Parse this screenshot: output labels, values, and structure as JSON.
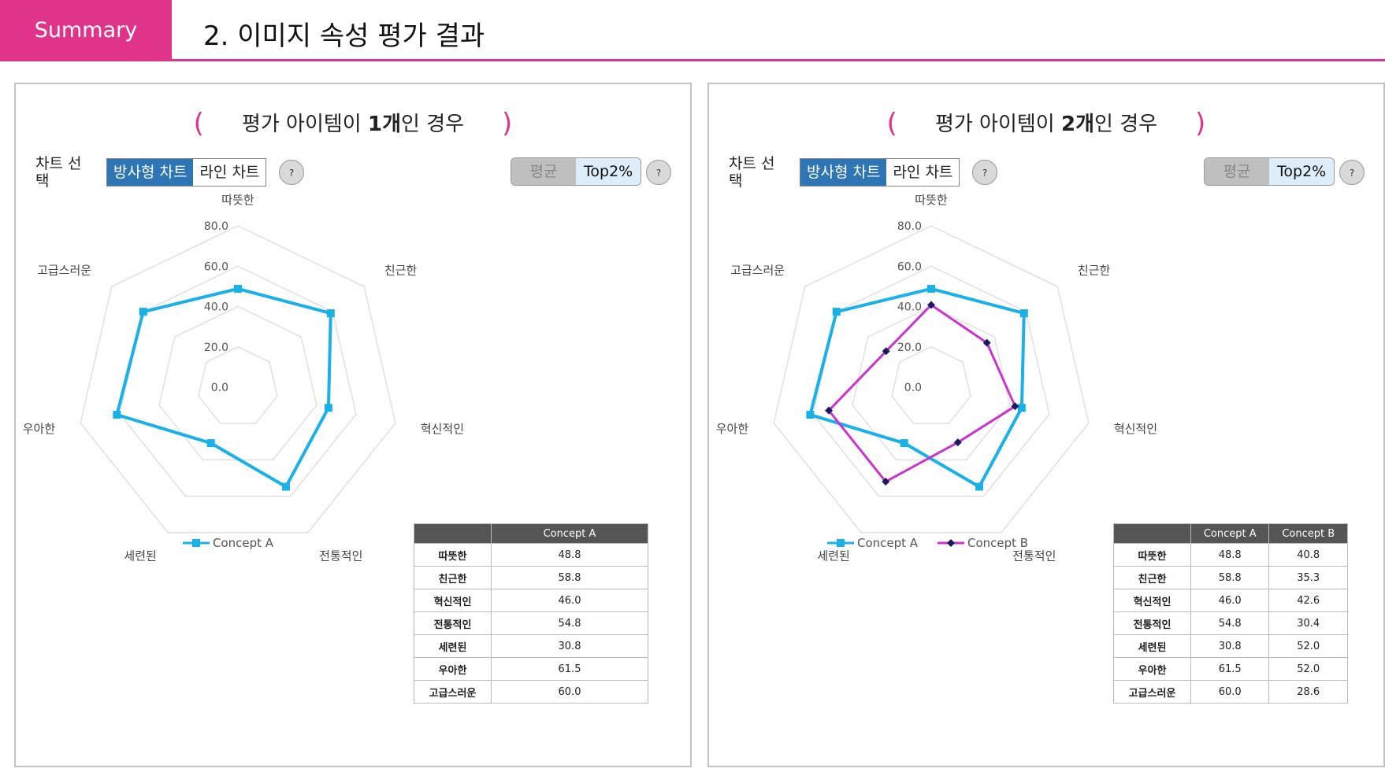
{
  "header": {
    "tab_label": "Summary",
    "title": "2. 이미지 속성 평가 결과"
  },
  "colors": {
    "accent": "#e0338a",
    "concept_a": "#1ab0e8",
    "concept_b": "#cc33cc",
    "active_toggle": "#2e75b6"
  },
  "panels": [
    {
      "title_prefix": "평가 아이템이 ",
      "title_bold": "1개",
      "title_suffix": "인 경우",
      "chart_select_label": "차트 선택",
      "chart_types": [
        "방사형 차트",
        "라인 차트"
      ],
      "active_chart_type": "방사형 차트",
      "help": "?",
      "stat_options": [
        "평균",
        "Top2%"
      ],
      "active_stat": "Top2%",
      "table": {
        "headers": [
          "",
          "Concept A"
        ],
        "rows": [
          [
            "따뜻한",
            "48.8"
          ],
          [
            "친근한",
            "58.8"
          ],
          [
            "혁신적인",
            "46.0"
          ],
          [
            "전통적인",
            "54.8"
          ],
          [
            "세련된",
            "30.8"
          ],
          [
            "우아한",
            "61.5"
          ],
          [
            "고급스러운",
            "60.0"
          ]
        ]
      }
    },
    {
      "title_prefix": "평가 아이템이 ",
      "title_bold": "2개",
      "title_suffix": "인 경우",
      "chart_select_label": "차트 선택",
      "chart_types": [
        "방사형 차트",
        "라인 차트"
      ],
      "active_chart_type": "방사형 차트",
      "help": "?",
      "stat_options": [
        "평균",
        "Top2%"
      ],
      "active_stat": "Top2%",
      "table": {
        "headers": [
          "",
          "Concept A",
          "Concept B"
        ],
        "rows": [
          [
            "따뜻한",
            "48.8",
            "40.8"
          ],
          [
            "친근한",
            "58.8",
            "35.3"
          ],
          [
            "혁신적인",
            "46.0",
            "42.6"
          ],
          [
            "전통적인",
            "54.8",
            "30.4"
          ],
          [
            "세련된",
            "30.8",
            "52.0"
          ],
          [
            "우아한",
            "61.5",
            "52.0"
          ],
          [
            "고급스러운",
            "60.0",
            "28.6"
          ]
        ]
      }
    }
  ],
  "chart_data": [
    {
      "type": "radar",
      "categories": [
        "따뜻한",
        "친근한",
        "혁신적인",
        "전통적인",
        "세련된",
        "우아한",
        "고급스러운"
      ],
      "rlim": [
        0,
        80
      ],
      "ticks": [
        "0.0",
        "20.0",
        "40.0",
        "60.0",
        "80.0"
      ],
      "series": [
        {
          "name": "Concept A",
          "values": [
            48.8,
            58.8,
            46.0,
            54.8,
            30.8,
            61.5,
            60.0
          ],
          "color": "#1ab0e8",
          "marker": "square"
        }
      ],
      "legend": "bottom"
    },
    {
      "type": "radar",
      "categories": [
        "따뜻한",
        "친근한",
        "혁신적인",
        "전통적인",
        "세련된",
        "우아한",
        "고급스러운"
      ],
      "rlim": [
        0,
        80
      ],
      "ticks": [
        "0.0",
        "20.0",
        "40.0",
        "60.0",
        "80.0"
      ],
      "series": [
        {
          "name": "Concept A",
          "values": [
            48.8,
            58.8,
            46.0,
            54.8,
            30.8,
            61.5,
            60.0
          ],
          "color": "#1ab0e8",
          "marker": "square"
        },
        {
          "name": "Concept B",
          "values": [
            40.8,
            35.3,
            42.6,
            30.4,
            52.0,
            52.0,
            28.6
          ],
          "color": "#cc33cc",
          "marker": "diamond"
        }
      ],
      "legend": "bottom"
    }
  ]
}
